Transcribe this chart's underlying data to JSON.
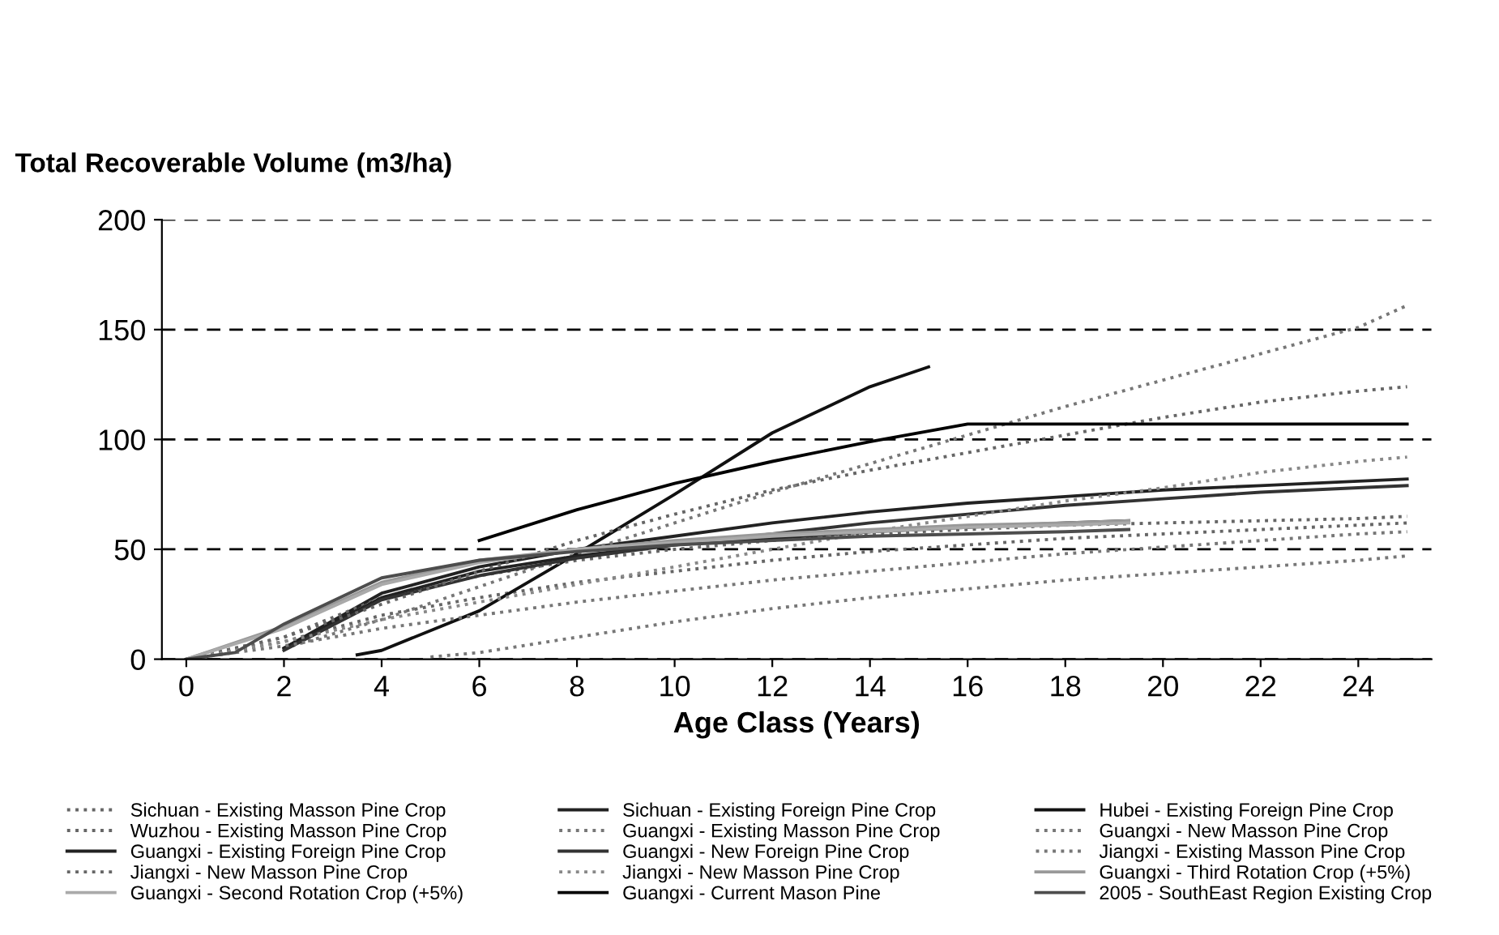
{
  "chart_data": {
    "type": "line",
    "ylabel": "Total Recoverable Volume (m3/ha)",
    "xlabel": "Age Class (Years)",
    "xlim": [
      -0.5,
      25.5
    ],
    "xticks": [
      0,
      2,
      4,
      6,
      8,
      10,
      12,
      14,
      16,
      18,
      20,
      22,
      24
    ],
    "ylim": [
      0,
      200
    ],
    "yticks": [
      0,
      50,
      100,
      150,
      200
    ],
    "grid": "y",
    "legend": "bottom",
    "marker": "none",
    "series": [
      {
        "name": "Sichuan - Existing Masson Pine Crop",
        "color": "#666666",
        "line_style": "dotted",
        "x": [
          0,
          2,
          4,
          6,
          8,
          10,
          12,
          14,
          16,
          18,
          20,
          22,
          24,
          25
        ],
        "values": [
          0,
          8,
          20,
          28,
          35,
          40,
          45,
          49,
          52,
          55,
          57,
          59,
          61,
          62
        ]
      },
      {
        "name": "Sichuan - Existing Foreign Pine Crop",
        "color": "#222222",
        "line_style": "solid",
        "x": [
          2,
          4,
          6,
          8,
          10,
          12,
          14,
          16,
          18,
          20,
          22,
          24,
          25
        ],
        "values": [
          5,
          30,
          42,
          50,
          56,
          62,
          67,
          71,
          74,
          77,
          79,
          81,
          82
        ]
      },
      {
        "name": "Hubei - Existing Foreign Pine Crop",
        "color": "#111111",
        "line_style": "solid",
        "x": [
          3.5,
          4,
          6,
          8,
          10,
          12,
          14,
          15.2
        ],
        "values": [
          2,
          4,
          22,
          48,
          75,
          103,
          124,
          133
        ]
      },
      {
        "name": "Wuzhou - Existing Masson Pine Crop",
        "color": "#666666",
        "line_style": "dotted",
        "x": [
          0,
          2,
          4,
          6,
          8,
          10,
          12,
          14,
          16,
          18,
          20,
          22,
          24,
          25
        ],
        "values": [
          0,
          10,
          28,
          38,
          45,
          50,
          54,
          57,
          59,
          61,
          62,
          63,
          64,
          65
        ]
      },
      {
        "name": "Guangxi - Existing Masson Pine Crop",
        "color": "#777777",
        "line_style": "dotted",
        "x": [
          5,
          6,
          8,
          10,
          12,
          14,
          16,
          18,
          20,
          22,
          24,
          25
        ],
        "values": [
          1,
          3,
          10,
          17,
          23,
          28,
          32,
          36,
          39,
          42,
          45,
          47
        ]
      },
      {
        "name": "Guangxi - New Masson Pine Crop",
        "color": "#777777",
        "line_style": "dotted",
        "x": [
          2,
          4,
          6,
          8,
          10,
          12,
          14,
          16,
          18,
          20,
          22,
          24,
          25
        ],
        "values": [
          5,
          18,
          33,
          48,
          62,
          76,
          89,
          102,
          115,
          127,
          139,
          151,
          161
        ]
      },
      {
        "name": "Guangxi - Existing Foreign Pine Crop",
        "color": "#222222",
        "line_style": "solid",
        "x": [
          2,
          4,
          6,
          8,
          10,
          12,
          14,
          16,
          18,
          19.3
        ],
        "values": [
          5,
          28,
          40,
          47,
          52,
          55,
          58,
          60,
          62,
          63
        ]
      },
      {
        "name": "Guangxi - New Foreign Pine Crop",
        "color": "#333333",
        "line_style": "solid",
        "x": [
          2,
          4,
          6,
          8,
          10,
          12,
          14,
          16,
          18,
          20,
          22,
          24,
          25
        ],
        "values": [
          4,
          27,
          38,
          46,
          52,
          57,
          62,
          66,
          70,
          73,
          76,
          78,
          79
        ]
      },
      {
        "name": "Jiangxi - Existing Masson Pine Crop",
        "color": "#777777",
        "line_style": "dotted",
        "x": [
          0,
          2,
          4,
          6,
          8,
          10,
          12,
          14,
          16,
          18,
          20,
          22,
          24,
          25
        ],
        "values": [
          0,
          6,
          14,
          20,
          26,
          31,
          36,
          40,
          44,
          48,
          51,
          54,
          57,
          58
        ]
      },
      {
        "name": "Jiangxi - New Masson Pine Crop",
        "color": "#666666",
        "line_style": "dotted",
        "x": [
          0,
          2,
          4,
          6,
          8,
          10,
          12,
          14,
          16,
          18,
          20,
          22,
          24,
          25
        ],
        "values": [
          0,
          10,
          25,
          40,
          54,
          66,
          77,
          86,
          94,
          102,
          110,
          117,
          122,
          124
        ]
      },
      {
        "name": "Jiangxi - New Masson Pine Crop",
        "color": "#888888",
        "line_style": "dotted",
        "x": [
          0,
          2,
          4,
          6,
          8,
          10,
          12,
          14,
          16,
          18,
          20,
          22,
          24,
          25
        ],
        "values": [
          0,
          8,
          18,
          26,
          34,
          42,
          50,
          58,
          65,
          72,
          78,
          85,
          90,
          92
        ]
      },
      {
        "name": "Guangxi - Third Rotation Crop (+5%)",
        "color": "#999999",
        "line_style": "solid",
        "x": [
          0,
          2,
          4,
          6,
          8,
          10,
          12,
          14,
          16,
          18,
          19.3
        ],
        "values": [
          0,
          15,
          35,
          45,
          50,
          54,
          57,
          59,
          61,
          62,
          63
        ]
      },
      {
        "name": "Guangxi - Second Rotation Crop (+5%)",
        "color": "#aaaaaa",
        "line_style": "solid",
        "x": [
          0,
          2,
          4,
          6,
          8,
          10,
          12,
          14,
          16,
          18,
          19.3
        ],
        "values": [
          0,
          14,
          34,
          44,
          50,
          53,
          56,
          58,
          60,
          61,
          62
        ]
      },
      {
        "name": "Guangxi - Current Mason Pine",
        "color": "#000000",
        "line_style": "solid",
        "x": [
          6,
          8,
          10,
          12,
          14,
          16,
          18,
          20,
          22,
          24,
          25
        ],
        "values": [
          54,
          68,
          80,
          90,
          99,
          107,
          107,
          107,
          107,
          107,
          107
        ]
      },
      {
        "name": "2005 - SouthEast Region Existing Crop",
        "color": "#4d4d4d",
        "line_style": "solid",
        "x": [
          0,
          1,
          2,
          4,
          6,
          8,
          10,
          12,
          14,
          16,
          18,
          19.3
        ],
        "values": [
          0,
          3,
          16,
          37,
          45,
          49,
          52,
          54,
          56,
          57,
          58,
          59
        ]
      }
    ]
  }
}
